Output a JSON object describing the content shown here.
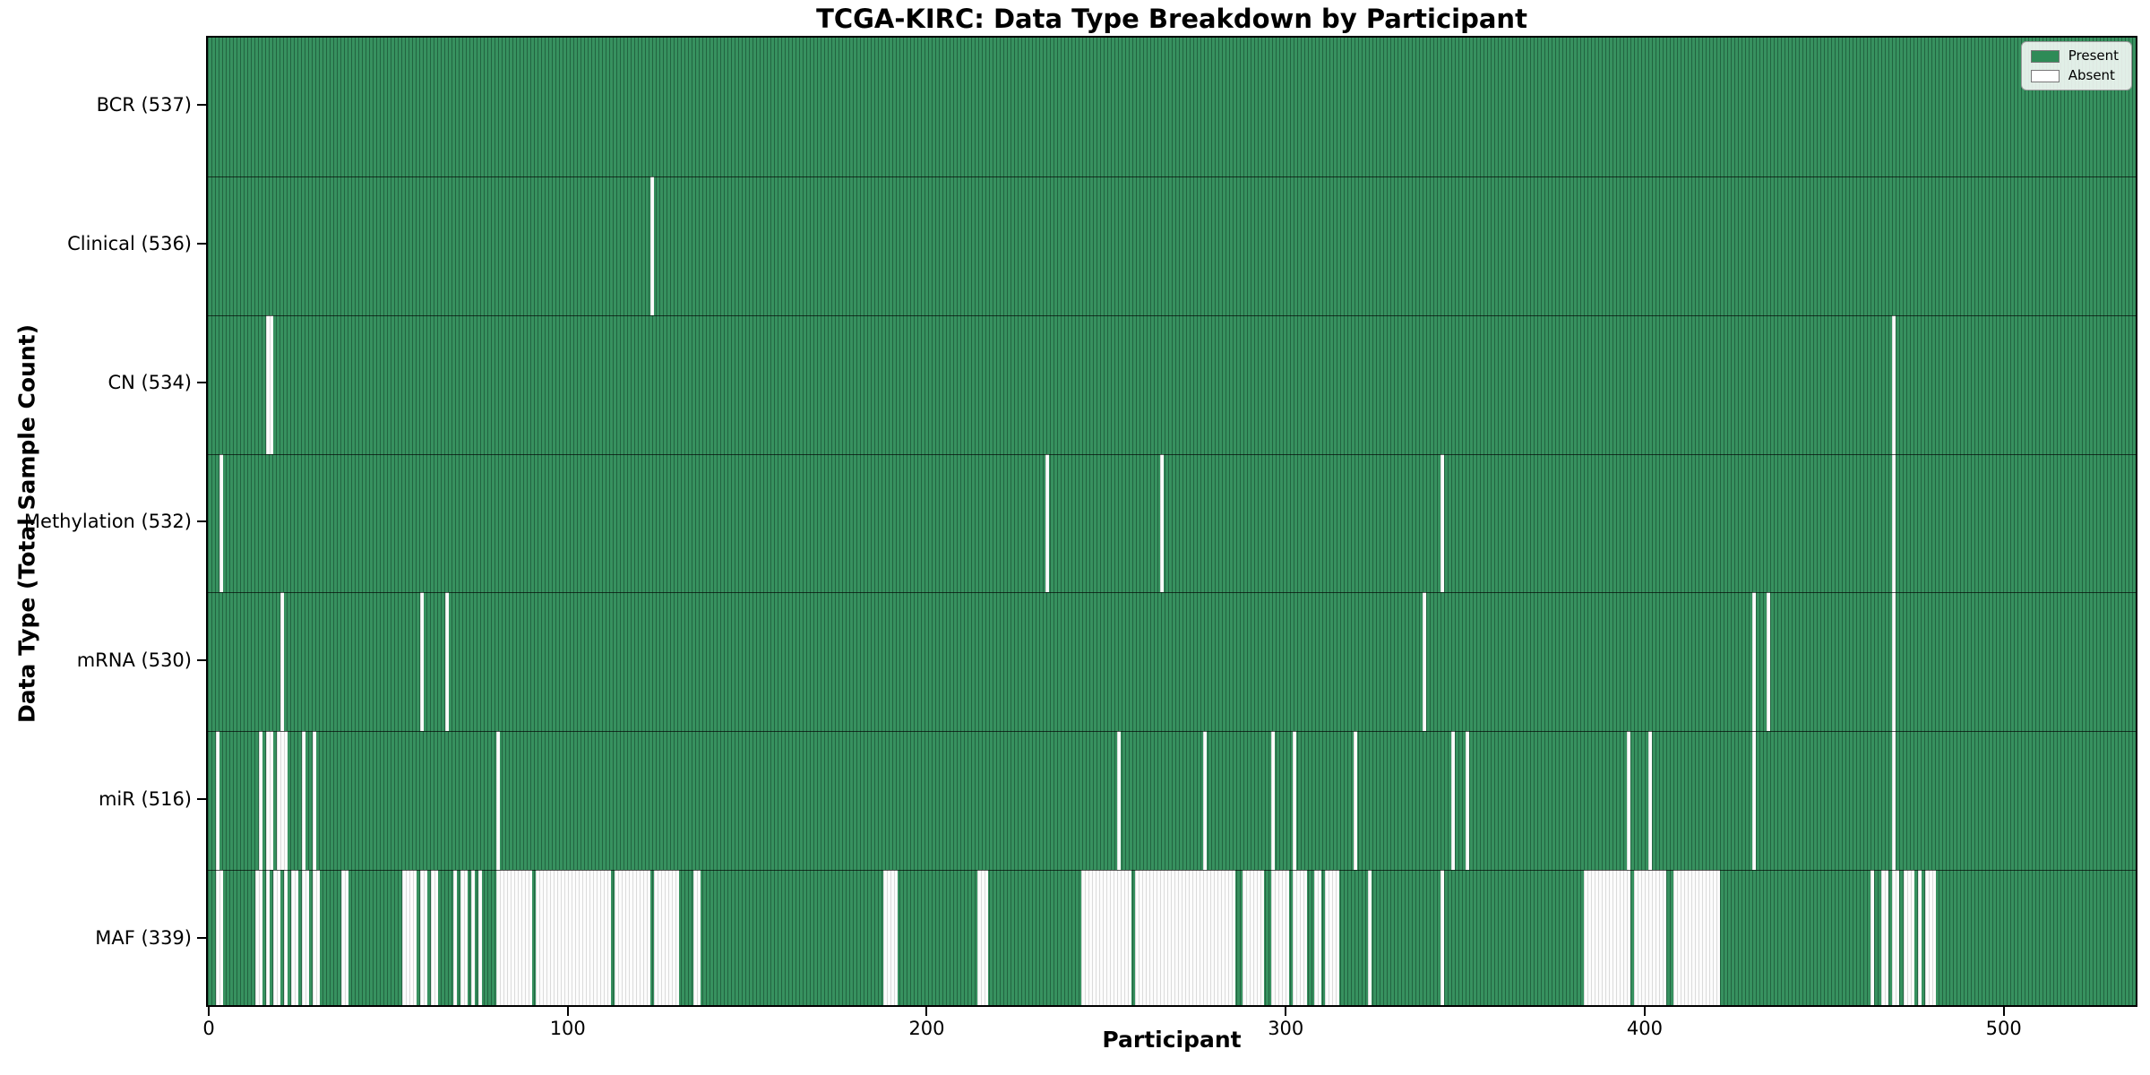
{
  "chart_data": {
    "type": "heatmap",
    "title": "TCGA-KIRC: Data Type Breakdown by Participant",
    "xlabel": "Participant",
    "ylabel": "Data Type (Total Sample Count)",
    "x_ticks": [
      0,
      100,
      200,
      300,
      400,
      500
    ],
    "x_range": [
      -0.75,
      537.25
    ],
    "n_participants": 537,
    "grid": false,
    "legend": {
      "position": "upper right",
      "items": [
        {
          "label": "Present",
          "color": "#2e8b57"
        },
        {
          "label": "Absent",
          "color": "#ffffff"
        }
      ]
    },
    "colors": {
      "present_fill": "#37915f",
      "present_swatch": "#2e8b57",
      "absent_fill": "#fcfcfc",
      "bar_edge_on_green": "rgba(10,45,28,0.45)",
      "bar_edge_on_white": "rgba(0,0,0,0.13)"
    },
    "rows": [
      {
        "name": "BCR",
        "label": "BCR (537)",
        "present_count": 537,
        "absent_ranges": []
      },
      {
        "name": "Clinical",
        "label": "Clinical (536)",
        "present_count": 536,
        "absent_ranges": [
          [
            123,
            123
          ]
        ]
      },
      {
        "name": "CN",
        "label": "CN (534)",
        "present_count": 534,
        "absent_ranges": [
          [
            16,
            17
          ],
          [
            469,
            469
          ]
        ]
      },
      {
        "name": "Methylation",
        "label": "Methylation (532)",
        "present_count": 532,
        "absent_ranges": [
          [
            3,
            3
          ],
          [
            233,
            233
          ],
          [
            265,
            265
          ],
          [
            343,
            343
          ],
          [
            469,
            469
          ]
        ]
      },
      {
        "name": "mRNA",
        "label": "mRNA (530)",
        "present_count": 530,
        "absent_ranges": [
          [
            20,
            20
          ],
          [
            59,
            59
          ],
          [
            66,
            66
          ],
          [
            338,
            338
          ],
          [
            430,
            430
          ],
          [
            434,
            434
          ],
          [
            469,
            469
          ]
        ]
      },
      {
        "name": "miR",
        "label": "miR (516)",
        "present_count": 516,
        "absent_ranges": [
          [
            2,
            2
          ],
          [
            14,
            14
          ],
          [
            16,
            17
          ],
          [
            19,
            21
          ],
          [
            26,
            26
          ],
          [
            29,
            29
          ],
          [
            80,
            80
          ],
          [
            253,
            253
          ],
          [
            277,
            277
          ],
          [
            296,
            296
          ],
          [
            302,
            302
          ],
          [
            319,
            319
          ],
          [
            346,
            346
          ],
          [
            350,
            350
          ],
          [
            395,
            395
          ],
          [
            401,
            401
          ],
          [
            430,
            430
          ],
          [
            469,
            469
          ]
        ]
      },
      {
        "name": "MAF",
        "label": "MAF (339)",
        "present_count": 339,
        "absent_ranges": [
          [
            2,
            3
          ],
          [
            13,
            14
          ],
          [
            16,
            16
          ],
          [
            18,
            19
          ],
          [
            21,
            21
          ],
          [
            23,
            24
          ],
          [
            26,
            27
          ],
          [
            29,
            30
          ],
          [
            37,
            38
          ],
          [
            54,
            57
          ],
          [
            59,
            60
          ],
          [
            62,
            63
          ],
          [
            68,
            68
          ],
          [
            70,
            71
          ],
          [
            73,
            73
          ],
          [
            75,
            75
          ],
          [
            80,
            89
          ],
          [
            91,
            111
          ],
          [
            113,
            122
          ],
          [
            124,
            130
          ],
          [
            135,
            136
          ],
          [
            188,
            191
          ],
          [
            214,
            216
          ],
          [
            243,
            256
          ],
          [
            258,
            285
          ],
          [
            288,
            293
          ],
          [
            296,
            300
          ],
          [
            302,
            305
          ],
          [
            308,
            309
          ],
          [
            311,
            314
          ],
          [
            323,
            323
          ],
          [
            343,
            343
          ],
          [
            383,
            395
          ],
          [
            397,
            405
          ],
          [
            408,
            420
          ],
          [
            463,
            463
          ],
          [
            466,
            467
          ],
          [
            469,
            470
          ],
          [
            472,
            474
          ],
          [
            476,
            476
          ],
          [
            478,
            480
          ]
        ]
      }
    ]
  }
}
